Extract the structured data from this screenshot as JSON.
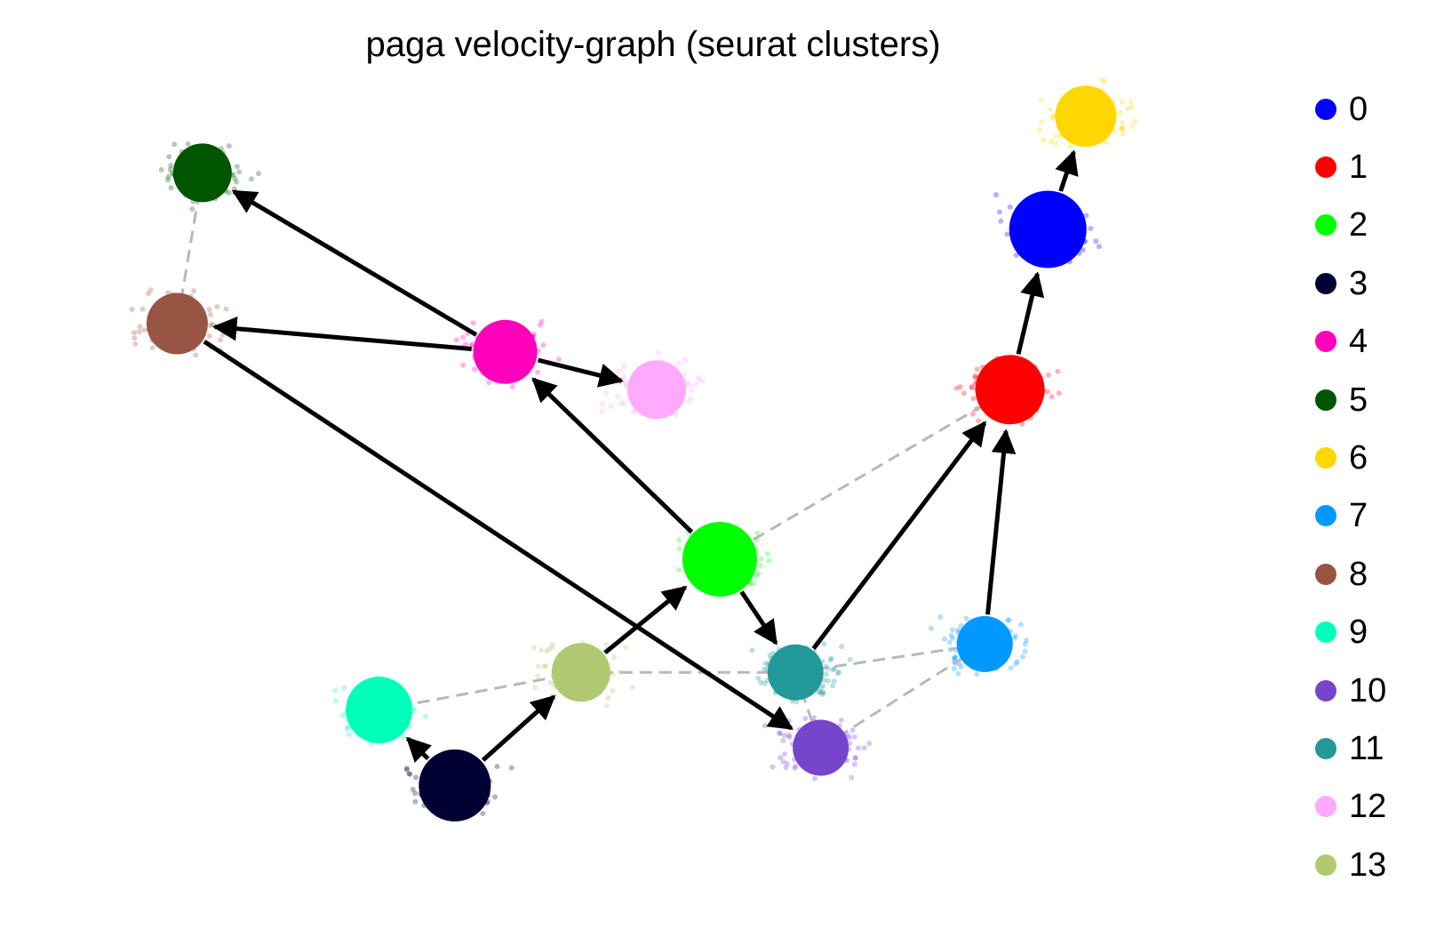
{
  "chart_data": {
    "type": "scatter",
    "title": "paga velocity-graph (seurat clusters)",
    "xlabel": "",
    "ylabel": "",
    "grid": false,
    "legend_position": "right",
    "clusters": [
      {
        "name": "0",
        "color": "#0000ff",
        "x": 0.76,
        "y": 0.7,
        "size": 1.45
      },
      {
        "name": "1",
        "color": "#ff0000",
        "x": 0.73,
        "y": 0.53,
        "size": 1.3
      },
      {
        "name": "2",
        "color": "#00ff00",
        "x": 0.5,
        "y": 0.35,
        "size": 1.4
      },
      {
        "name": "3",
        "color": "#000033",
        "x": 0.29,
        "y": 0.11,
        "size": 1.35
      },
      {
        "name": "4",
        "color": "#ff00bb",
        "x": 0.33,
        "y": 0.57,
        "size": 1.2
      },
      {
        "name": "5",
        "color": "#005500",
        "x": 0.09,
        "y": 0.76,
        "size": 1.1
      },
      {
        "name": "6",
        "color": "#ffd700",
        "x": 0.79,
        "y": 0.82,
        "size": 1.15
      },
      {
        "name": "7",
        "color": "#0099ff",
        "x": 0.71,
        "y": 0.26,
        "size": 1.05
      },
      {
        "name": "8",
        "color": "#995544",
        "x": 0.07,
        "y": 0.6,
        "size": 1.15
      },
      {
        "name": "9",
        "color": "#00ffbb",
        "x": 0.23,
        "y": 0.19,
        "size": 1.25
      },
      {
        "name": "10",
        "color": "#7744cc",
        "x": 0.58,
        "y": 0.15,
        "size": 1.05
      },
      {
        "name": "11",
        "color": "#229999",
        "x": 0.56,
        "y": 0.23,
        "size": 1.05
      },
      {
        "name": "12",
        "color": "#ffaaff",
        "x": 0.45,
        "y": 0.53,
        "size": 1.1
      },
      {
        "name": "13",
        "color": "#b0c870",
        "x": 0.39,
        "y": 0.23,
        "size": 1.1
      }
    ],
    "directed_edges": [
      [
        "3",
        "9"
      ],
      [
        "3",
        "13"
      ],
      [
        "13",
        "2"
      ],
      [
        "2",
        "4"
      ],
      [
        "2",
        "11"
      ],
      [
        "4",
        "5"
      ],
      [
        "4",
        "8"
      ],
      [
        "4",
        "12"
      ],
      [
        "8",
        "10"
      ],
      [
        "11",
        "1"
      ],
      [
        "7",
        "1"
      ],
      [
        "1",
        "0"
      ],
      [
        "0",
        "6"
      ]
    ],
    "weak_edges": [
      [
        "5",
        "8"
      ],
      [
        "9",
        "13"
      ],
      [
        "13",
        "11"
      ],
      [
        "11",
        "7"
      ],
      [
        "10",
        "7"
      ],
      [
        "2",
        "1"
      ],
      [
        "11",
        "10"
      ]
    ]
  }
}
